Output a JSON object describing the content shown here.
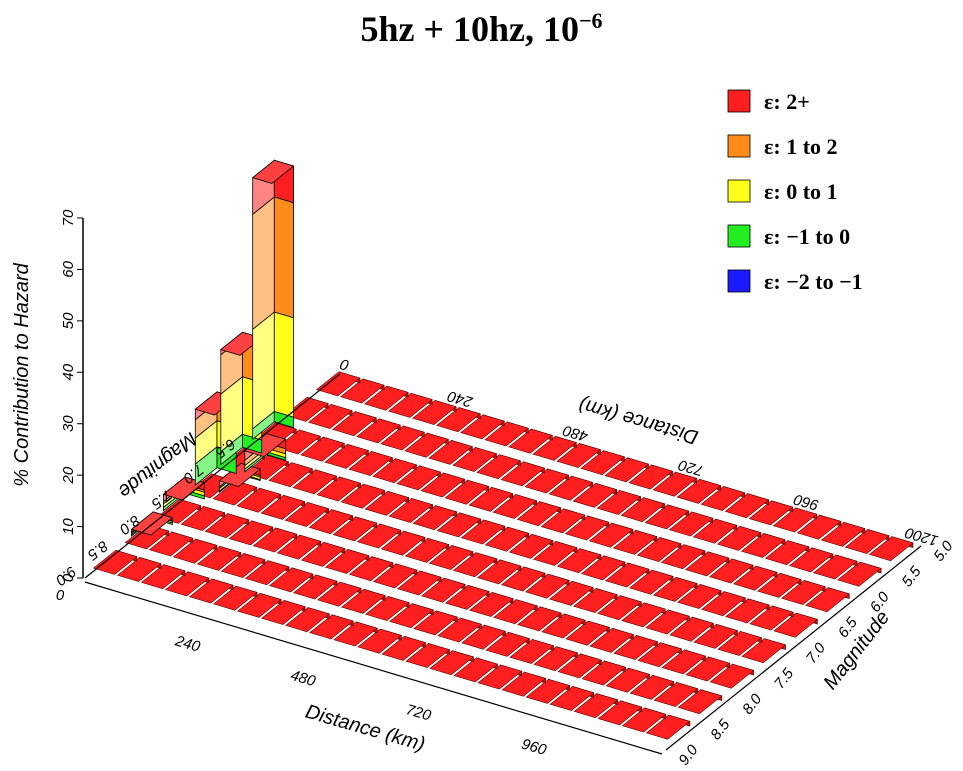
{
  "title": {
    "main": "5hz + 10hz, 10",
    "exponent": "−6"
  },
  "chart_data": {
    "type": "bar",
    "subtype": "3d-stacked-bar",
    "y_axis": {
      "label": "% Contribution to Hazard",
      "ticks": [
        "0",
        "10",
        "20",
        "30",
        "40",
        "50",
        "60",
        "70"
      ],
      "range": [
        0,
        70
      ]
    },
    "distance_axis": {
      "label": "Distance (km)",
      "ticks": [
        "0",
        "240",
        "480",
        "720",
        "960",
        "1200"
      ],
      "range": [
        0,
        1200
      ]
    },
    "magnitude_axis": {
      "label": "Magnitude",
      "ticks": [
        "5.0",
        "5.5",
        "6.0",
        "6.5",
        "7.0",
        "7.5",
        "8.0",
        "8.5",
        "9.0"
      ],
      "back_ticks": [
        "6.5",
        "7.0",
        "7.5",
        "8.0",
        "8.5",
        "9.0"
      ],
      "range": [
        5.0,
        9.0
      ]
    },
    "legend": [
      {
        "label": "ε:  2+",
        "color": "#ff1f1f"
      },
      {
        "label": "ε:  1 to  2",
        "color": "#ff8c1a"
      },
      {
        "label": "ε:  0 to  1",
        "color": "#ffff1a"
      },
      {
        "label": "ε: −1 to  0",
        "color": "#22ee22"
      },
      {
        "label": "ε: −2 to −1",
        "color": "#1a1aff"
      }
    ],
    "legend_position": "top-right",
    "bars": [
      {
        "magnitude": 6.2,
        "distance": 20,
        "segments": {
          "eps_m1_0": 2.0,
          "eps_0_1": 19.0,
          "eps_1_2": 22.0,
          "eps_2plus": 7.0
        }
      },
      {
        "magnitude": 6.7,
        "distance": 20,
        "segments": {
          "eps_m1_0": 2.5,
          "eps_0_1": 11.0,
          "eps_1_2": 7.5,
          "eps_2plus": 1.0
        }
      },
      {
        "magnitude": 7.1,
        "distance": 20,
        "segments": {
          "eps_m1_0": 4.0,
          "eps_0_1": 5.0,
          "eps_1_2": 3.5,
          "eps_2plus": 2.0
        }
      },
      {
        "magnitude": 6.7,
        "distance": 70,
        "segments": {
          "eps_m1_0": 0.5,
          "eps_0_1": 0.7,
          "eps_1_2": 1.0,
          "eps_2plus": 1.8
        }
      },
      {
        "magnitude": 7.6,
        "distance": 20,
        "segments": {
          "eps_m1_0": 0.6,
          "eps_0_1": 0.7,
          "eps_1_2": 0.4,
          "eps_2plus": 1.4
        }
      },
      {
        "magnitude": 7.1,
        "distance": 70,
        "segments": {
          "eps_m1_0": 0.2,
          "eps_0_1": 0.5,
          "eps_1_2": 0.3,
          "eps_2plus": 1.2
        }
      },
      {
        "magnitude": 8.1,
        "distance": 20,
        "segments": {
          "eps_m1_0": 0.3,
          "eps_0_1": 0.3,
          "eps_1_2": 0.2,
          "eps_2plus": 0.5
        }
      }
    ],
    "floor_color": "#ff1f1f",
    "grid": false
  }
}
